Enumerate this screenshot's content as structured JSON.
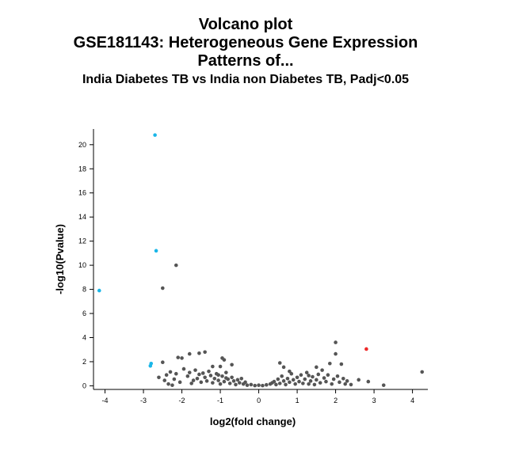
{
  "chart_data": {
    "type": "scatter",
    "title_lines": [
      "Volcano plot",
      "GSE181143: Heterogeneous Gene Expression",
      "Patterns of..."
    ],
    "subtitle": "India Diabetes TB vs India non Diabetes TB, Padj<0.05",
    "xlabel": "log2(fold change)",
    "ylabel": "-log10(Pvalue)",
    "xlim": [
      -4.3,
      4.4
    ],
    "ylim": [
      -0.3,
      21.3
    ],
    "xticks": [
      -4,
      -3,
      -2,
      -1,
      0,
      1,
      2,
      3,
      4
    ],
    "yticks": [
      0,
      2,
      4,
      6,
      8,
      10,
      12,
      14,
      16,
      18,
      20
    ],
    "grid": false,
    "colors": {
      "down": "#1ab6e8",
      "up": "#ee2a2a",
      "ns": "#555555"
    },
    "series": [
      {
        "group": "down",
        "points": [
          [
            -2.7,
            20.8
          ],
          [
            -2.67,
            11.2
          ],
          [
            -4.15,
            7.9
          ],
          [
            -2.8,
            1.85
          ],
          [
            -2.82,
            1.65
          ]
        ]
      },
      {
        "group": "up",
        "points": [
          [
            2.8,
            3.05
          ]
        ]
      },
      {
        "group": "ns",
        "points": [
          [
            -2.15,
            10.0
          ],
          [
            -2.5,
            8.1
          ],
          [
            2.0,
            3.6
          ],
          [
            2.0,
            2.65
          ],
          [
            2.15,
            1.8
          ],
          [
            4.25,
            1.15
          ],
          [
            -1.8,
            2.65
          ],
          [
            -1.55,
            2.7
          ],
          [
            -1.4,
            2.8
          ],
          [
            -2.1,
            2.35
          ],
          [
            -2.0,
            2.3
          ],
          [
            -0.95,
            2.3
          ],
          [
            -0.9,
            2.15
          ],
          [
            -2.5,
            1.95
          ],
          [
            -1.2,
            1.6
          ],
          [
            -1.0,
            1.6
          ],
          [
            -0.7,
            1.75
          ],
          [
            0.55,
            1.9
          ],
          [
            0.65,
            1.55
          ],
          [
            0.8,
            1.2
          ],
          [
            1.5,
            1.55
          ],
          [
            1.65,
            1.3
          ],
          [
            1.85,
            1.85
          ],
          [
            1.3,
            0.85
          ],
          [
            2.6,
            0.5
          ],
          [
            2.85,
            0.35
          ],
          [
            3.25,
            0.05
          ],
          [
            -2.6,
            0.7
          ],
          [
            -2.4,
            0.9
          ],
          [
            -2.3,
            1.15
          ],
          [
            -2.2,
            0.55
          ],
          [
            -2.15,
            1.0
          ],
          [
            -2.05,
            0.3
          ],
          [
            -1.95,
            1.4
          ],
          [
            -1.85,
            0.8
          ],
          [
            -1.8,
            1.1
          ],
          [
            -1.7,
            0.45
          ],
          [
            -1.65,
            1.3
          ],
          [
            -1.6,
            0.6
          ],
          [
            -1.55,
            0.95
          ],
          [
            -1.5,
            0.3
          ],
          [
            -1.45,
            1.05
          ],
          [
            -1.4,
            0.7
          ],
          [
            -1.35,
            0.4
          ],
          [
            -1.3,
            1.2
          ],
          [
            -1.25,
            0.85
          ],
          [
            -1.2,
            0.25
          ],
          [
            -1.15,
            0.6
          ],
          [
            -1.1,
            1.0
          ],
          [
            -1.05,
            0.45
          ],
          [
            -1.0,
            0.15
          ],
          [
            -0.95,
            0.8
          ],
          [
            -0.9,
            0.35
          ],
          [
            -0.85,
            1.1
          ],
          [
            -0.8,
            0.55
          ],
          [
            -0.75,
            0.2
          ],
          [
            -0.7,
            0.7
          ],
          [
            -0.65,
            0.4
          ],
          [
            -0.6,
            0.1
          ],
          [
            -0.55,
            0.5
          ],
          [
            -0.5,
            0.25
          ],
          [
            -0.45,
            0.6
          ],
          [
            -0.4,
            0.15
          ],
          [
            -0.35,
            0.3
          ],
          [
            -0.3,
            0.05
          ],
          [
            -0.2,
            0.1
          ],
          [
            -0.1,
            0.02
          ],
          [
            0.0,
            0.05
          ],
          [
            0.1,
            0.02
          ],
          [
            0.2,
            0.08
          ],
          [
            0.3,
            0.15
          ],
          [
            0.4,
            0.35
          ],
          [
            0.45,
            0.1
          ],
          [
            0.5,
            0.55
          ],
          [
            0.55,
            0.2
          ],
          [
            0.6,
            0.8
          ],
          [
            0.65,
            0.4
          ],
          [
            0.7,
            0.1
          ],
          [
            0.75,
            0.6
          ],
          [
            0.8,
            0.3
          ],
          [
            0.85,
            1.0
          ],
          [
            0.9,
            0.5
          ],
          [
            0.95,
            0.15
          ],
          [
            1.0,
            0.7
          ],
          [
            1.05,
            0.35
          ],
          [
            1.1,
            0.9
          ],
          [
            1.15,
            0.2
          ],
          [
            1.2,
            0.55
          ],
          [
            1.25,
            1.1
          ],
          [
            1.35,
            0.4
          ],
          [
            1.4,
            0.75
          ],
          [
            1.45,
            0.1
          ],
          [
            1.5,
            0.5
          ],
          [
            1.55,
            0.95
          ],
          [
            1.6,
            0.25
          ],
          [
            1.7,
            0.65
          ],
          [
            1.75,
            0.35
          ],
          [
            1.8,
            0.9
          ],
          [
            1.9,
            0.15
          ],
          [
            1.95,
            0.55
          ],
          [
            2.05,
            0.8
          ],
          [
            2.1,
            0.3
          ],
          [
            2.2,
            0.6
          ],
          [
            2.25,
            0.15
          ],
          [
            2.3,
            0.4
          ],
          [
            2.4,
            0.1
          ],
          [
            -2.35,
            0.15
          ],
          [
            -2.45,
            0.45
          ],
          [
            -2.25,
            0.05
          ],
          [
            -1.75,
            0.2
          ],
          [
            -1.05,
            0.9
          ],
          [
            -0.85,
            0.65
          ],
          [
            0.35,
            0.25
          ],
          [
            1.3,
            0.15
          ]
        ]
      }
    ]
  }
}
